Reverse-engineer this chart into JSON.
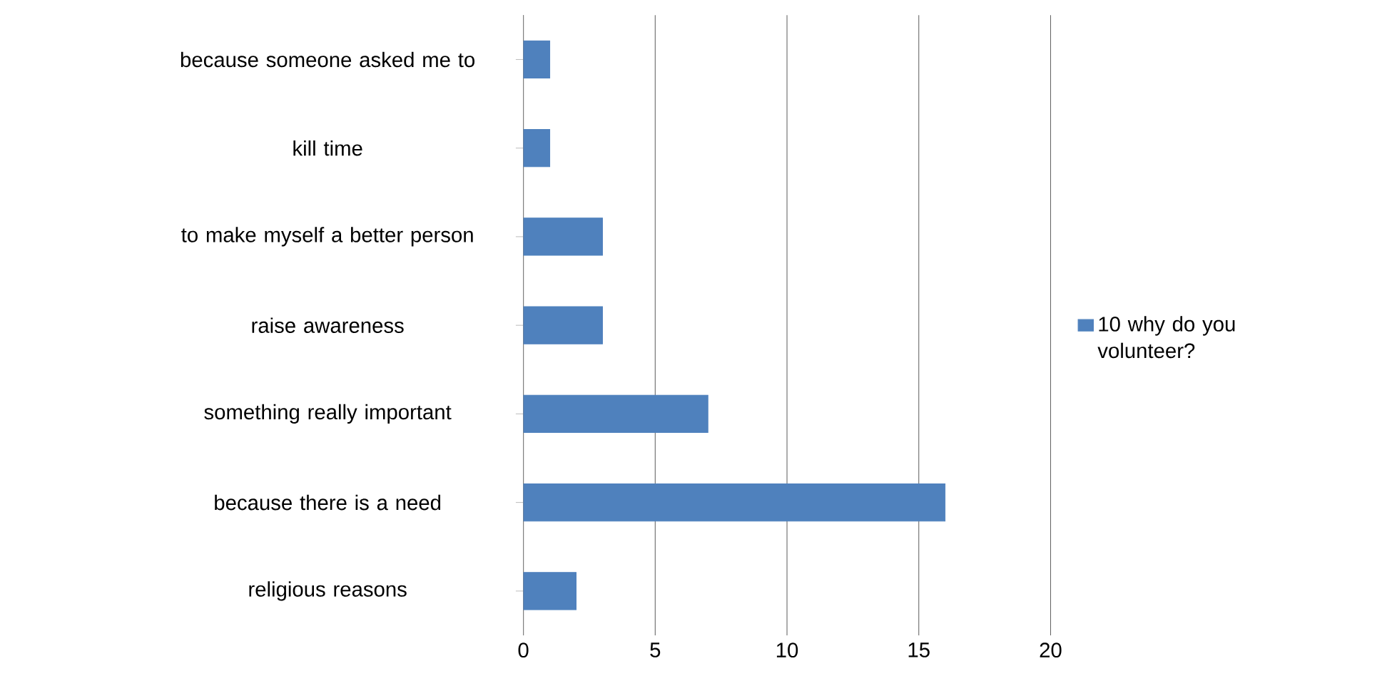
{
  "chart_data": {
    "type": "bar",
    "orientation": "horizontal",
    "categories": [
      "because someone asked me to",
      "kill time",
      "to make myself a better person",
      "raise awareness",
      "something really important",
      "because there is a need",
      "religious reasons"
    ],
    "series": [
      {
        "name": "10 why do you volunteer?",
        "color": "#4f81bd",
        "values": [
          1,
          1,
          3,
          3,
          7,
          16,
          2
        ]
      }
    ],
    "xlim": [
      0,
      20
    ],
    "xticks": [
      0,
      5,
      10,
      15,
      20
    ],
    "grid": "x",
    "legend": "right"
  }
}
